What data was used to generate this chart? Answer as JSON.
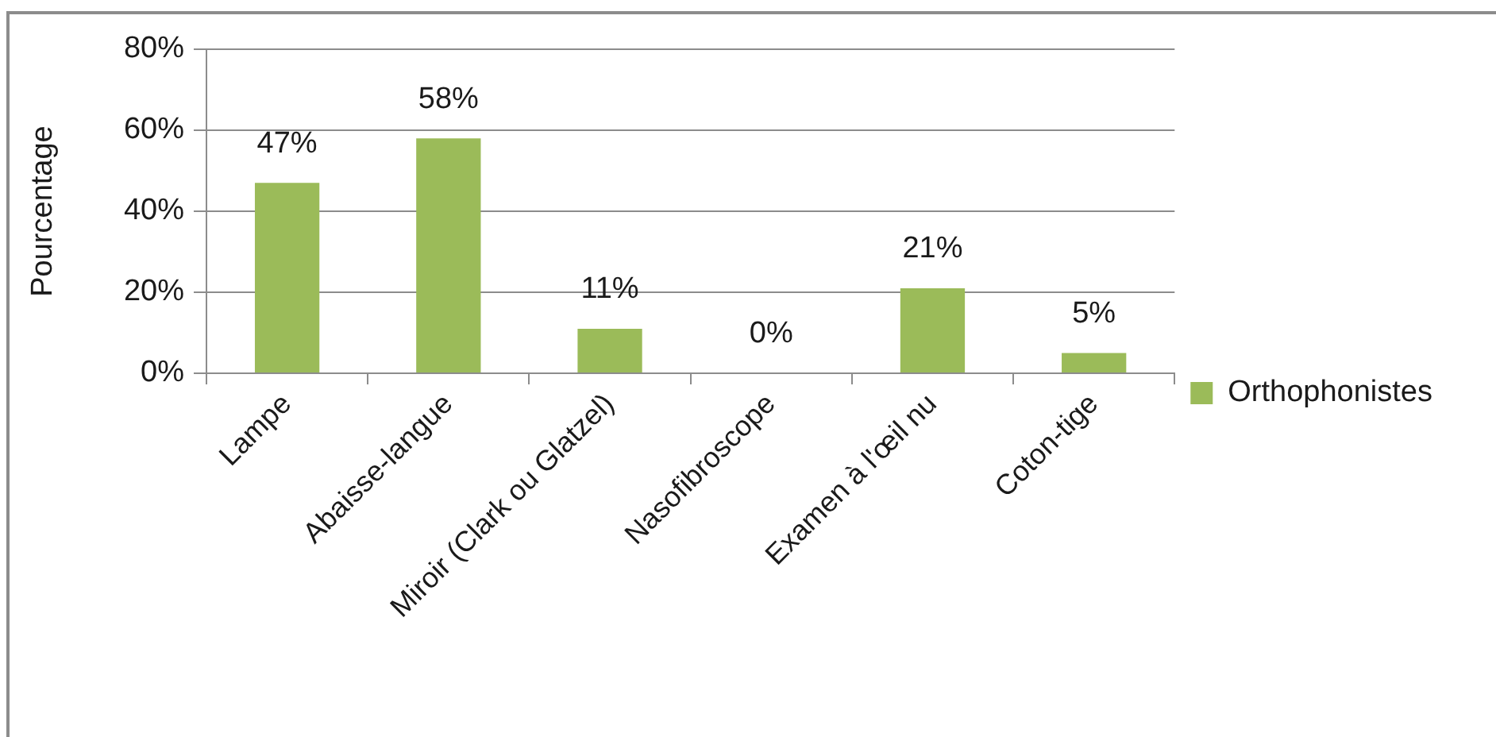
{
  "chart_data": {
    "type": "bar",
    "ylabel": "Pourcentage",
    "categories": [
      "Lampe",
      "Abaisse-langue",
      "Miroir (Clark ou Glatzel)",
      "Nasofibroscope",
      "Examen à l'œil nu",
      "Coton-tige"
    ],
    "series": [
      {
        "name": "Orthophonistes",
        "color": "#9bbb59",
        "values": [
          47,
          58,
          11,
          0,
          21,
          5
        ],
        "value_labels": [
          "47%",
          "58%",
          "11%",
          "0%",
          "21%",
          "5%"
        ]
      }
    ],
    "ylim": [
      0,
      80
    ],
    "yticks": [
      {
        "value": 0,
        "label": "0%"
      },
      {
        "value": 20,
        "label": "20%"
      },
      {
        "value": 40,
        "label": "40%"
      },
      {
        "value": 60,
        "label": "60%"
      },
      {
        "value": 80,
        "label": "80%"
      }
    ],
    "grid": "y",
    "legend": "right"
  }
}
